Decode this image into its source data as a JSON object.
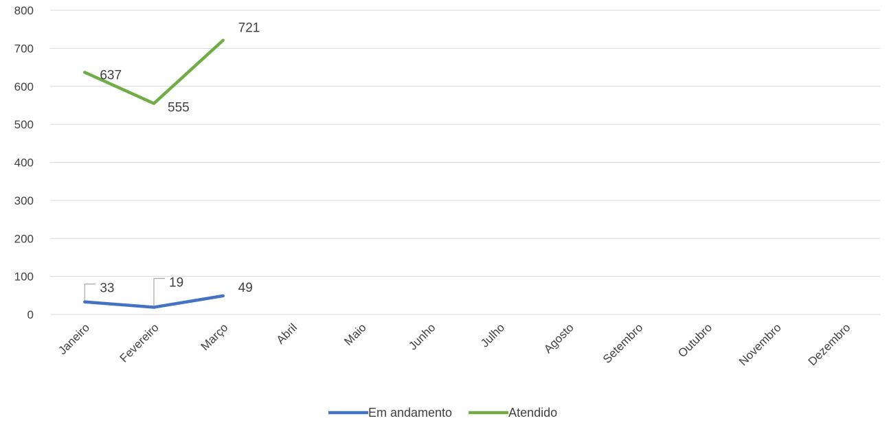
{
  "chart_data": {
    "type": "line",
    "title": "",
    "xlabel": "",
    "ylabel": "",
    "categories": [
      "Janeiro",
      "Fevereiro",
      "Março",
      "Abril",
      "Maio",
      "Junho",
      "Julho",
      "Agosto",
      "Setembro",
      "Outubro",
      "Novembro",
      "Dezembro"
    ],
    "ylim": [
      0,
      800
    ],
    "yticks": [
      0,
      100,
      200,
      300,
      400,
      500,
      600,
      700,
      800
    ],
    "grid": true,
    "legend_position": "bottom",
    "series": [
      {
        "name": "Em andamento",
        "color": "#4472C4",
        "values": [
          33,
          19,
          49,
          null,
          null,
          null,
          null,
          null,
          null,
          null,
          null,
          null
        ]
      },
      {
        "name": "Atendido",
        "color": "#70AD47",
        "values": [
          637,
          555,
          721,
          null,
          null,
          null,
          null,
          null,
          null,
          null,
          null,
          null
        ]
      }
    ]
  }
}
